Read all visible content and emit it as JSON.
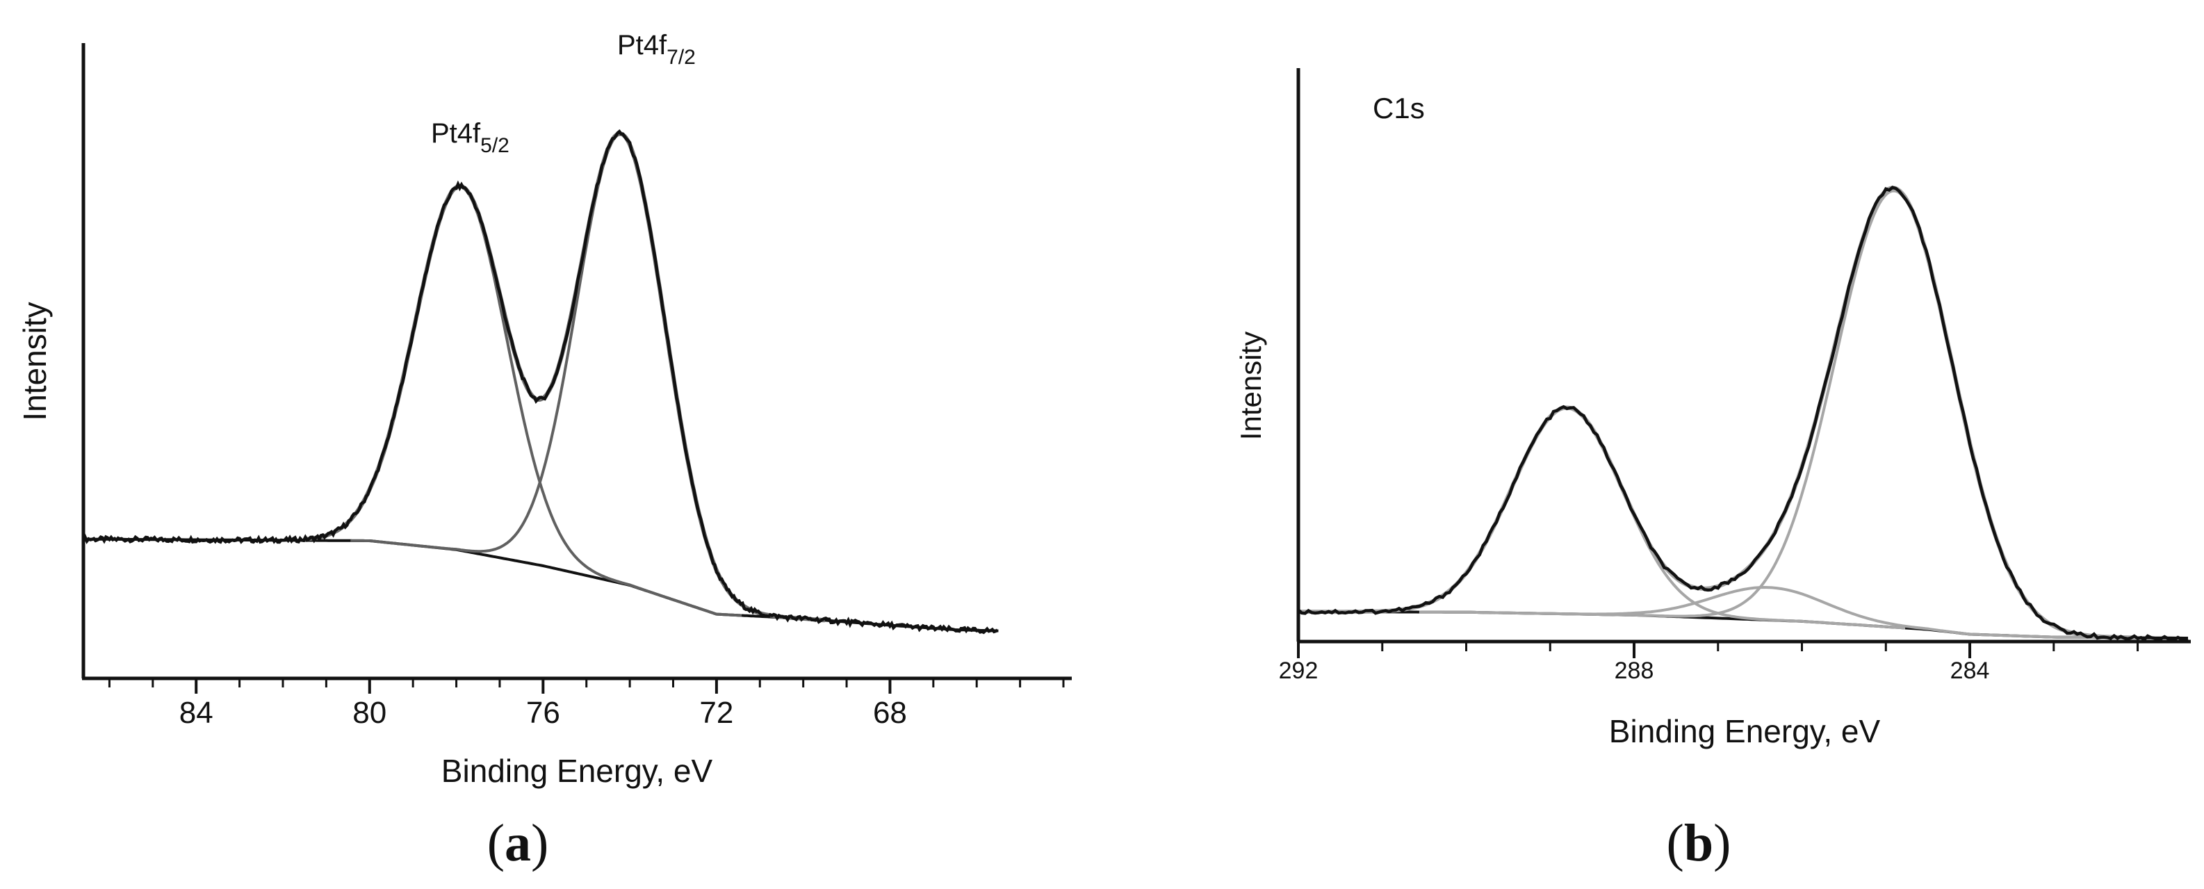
{
  "chart_data": [
    {
      "panel": "(a)",
      "type": "line",
      "title": "",
      "xlabel": "Binding Energy, eV",
      "ylabel": "Intensity",
      "xlim": [
        86.6,
        64.0
      ],
      "x_reversed": true,
      "ylim": [
        0,
        1
      ],
      "y_units": "normalized intensity (no tick labels)",
      "x_ticks": [
        84,
        80,
        76,
        72,
        68
      ],
      "x_tick_labels": [
        "84",
        "80",
        "76",
        "72",
        "68"
      ],
      "minor_tick_step": 1,
      "annotations": [
        {
          "text": "Pt4f",
          "sub": "5/2",
          "x": 77.9,
          "y": 0.94
        },
        {
          "text": "Pt4f",
          "sub": "7/2",
          "x": 74.3,
          "y": 1.1
        }
      ],
      "components": [
        {
          "name": "Pt4f 7/2",
          "center": 74.2,
          "height": 0.807,
          "fwhm": 2.4
        },
        {
          "name": "Pt4f 5/2",
          "center": 77.9,
          "height": 0.654,
          "fwhm": 2.5
        }
      ],
      "background": {
        "name": "Shirley background",
        "points": [
          [
            86.6,
            0.183
          ],
          [
            80,
            0.18
          ],
          [
            78,
            0.164
          ],
          [
            76,
            0.135
          ],
          [
            74,
            0.1
          ],
          [
            72,
            0.048
          ],
          [
            70,
            0.04
          ],
          [
            68,
            0.028
          ],
          [
            66.5,
            0.02
          ],
          [
            65.5,
            0.018
          ]
        ]
      },
      "series": [
        {
          "name": "Measured spectrum",
          "color": "#111111",
          "role": "data"
        },
        {
          "name": "Envelope fit",
          "color": "#6f6f6f",
          "role": "fit"
        },
        {
          "name": "Pt4f 5/2 component",
          "color": "#606060",
          "role": "component"
        },
        {
          "name": "Pt4f 7/2 component",
          "color": "#606060",
          "role": "component"
        },
        {
          "name": "Background",
          "color": "#111111",
          "role": "background"
        }
      ]
    },
    {
      "panel": "(b)",
      "type": "line",
      "title": "C1s",
      "xlabel": "Binding Energy, eV",
      "ylabel": "Intensity",
      "xlim": [
        292.0,
        281.4
      ],
      "x_reversed": true,
      "ylim": [
        0,
        1
      ],
      "y_units": "normalized intensity (no tick labels)",
      "x_ticks": [
        292,
        288,
        284
      ],
      "x_tick_labels": [
        "292",
        "288",
        "284"
      ],
      "minor_tick_step": 1,
      "components": [
        {
          "name": "C1s main",
          "center": 284.9,
          "height": 0.91,
          "fwhm": 1.65
        },
        {
          "name": "C1s high-BE",
          "center": 288.8,
          "height": 0.43,
          "fwhm": 1.55
        },
        {
          "name": "C1s middle",
          "center": 286.4,
          "height": 0.068,
          "fwhm": 1.6
        }
      ],
      "background": {
        "name": "Shirley background",
        "points": [
          [
            292,
            0.055
          ],
          [
            290,
            0.054
          ],
          [
            288,
            0.048
          ],
          [
            286,
            0.035
          ],
          [
            284.5,
            0.018
          ],
          [
            284,
            0.008
          ],
          [
            283,
            0.002
          ],
          [
            281.4,
            0.0
          ]
        ]
      },
      "series": [
        {
          "name": "Measured spectrum",
          "color": "#111111",
          "role": "data"
        },
        {
          "name": "Envelope fit",
          "color": "#a6a6a6",
          "role": "fit"
        },
        {
          "name": "C1s main component",
          "color": "#a6a6a6",
          "role": "component"
        },
        {
          "name": "C1s high-BE component",
          "color": "#a6a6a6",
          "role": "component"
        },
        {
          "name": "C1s middle component",
          "color": "#a6a6a6",
          "role": "component"
        },
        {
          "name": "Background",
          "color": "#111111",
          "role": "background"
        }
      ]
    }
  ]
}
